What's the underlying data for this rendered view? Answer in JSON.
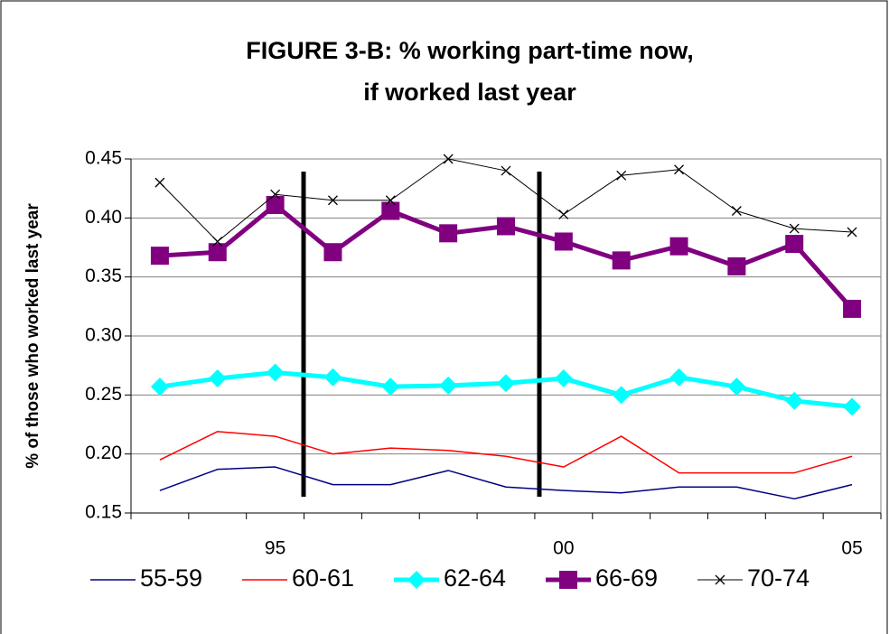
{
  "chart_data": {
    "type": "line",
    "title": [
      "FIGURE 3-B:  % working part-time now,",
      "if worked last year"
    ],
    "y_label": "% of those who worked last year",
    "categories": [
      null,
      null,
      "95",
      null,
      null,
      null,
      null,
      "00",
      null,
      null,
      null,
      null,
      "05"
    ],
    "ylim": [
      0.15,
      0.45
    ],
    "yticks": [
      0.15,
      {
        "value": 0.2,
        "label": "0.20"
      },
      0.25,
      {
        "value": 0.3,
        "label": "0.30"
      },
      0.35,
      {
        "value": 0.4,
        "label": "0.40"
      },
      0.45
    ],
    "grid": true,
    "legend": "bottom",
    "series": [
      {
        "name": "55-59",
        "color": "#000080",
        "line_width": 1.5,
        "marker": "none",
        "values": [
          0.169,
          0.187,
          0.189,
          0.174,
          0.174,
          0.186,
          0.172,
          0.169,
          0.167,
          0.172,
          0.172,
          0.162,
          0.174
        ]
      },
      {
        "name": "60-61",
        "color": "#ff0000",
        "line_width": 1.5,
        "marker": "none",
        "values": [
          0.195,
          0.219,
          0.215,
          0.2,
          0.205,
          0.203,
          0.198,
          0.189,
          0.215,
          0.184,
          0.184,
          0.184,
          0.198
        ]
      },
      {
        "name": "62-64",
        "color": "#00ffff",
        "line_width": 5,
        "marker": "diamond",
        "values": [
          0.257,
          0.264,
          0.269,
          0.265,
          0.257,
          0.258,
          0.26,
          0.264,
          0.25,
          0.265,
          0.257,
          0.245,
          0.24
        ]
      },
      {
        "name": "66-69",
        "color": "#800080",
        "line_width": 5,
        "marker": "square",
        "values": [
          0.368,
          0.371,
          0.411,
          0.371,
          0.406,
          0.387,
          0.393,
          0.38,
          0.364,
          0.376,
          0.359,
          0.378,
          0.323
        ]
      },
      {
        "name": "70-74",
        "color": "#000000",
        "line_width": 1,
        "marker": "x",
        "values": [
          0.43,
          0.38,
          0.42,
          0.415,
          0.415,
          0.45,
          0.44,
          0.403,
          0.436,
          0.441,
          0.406,
          0.391,
          0.388
        ]
      }
    ]
  }
}
